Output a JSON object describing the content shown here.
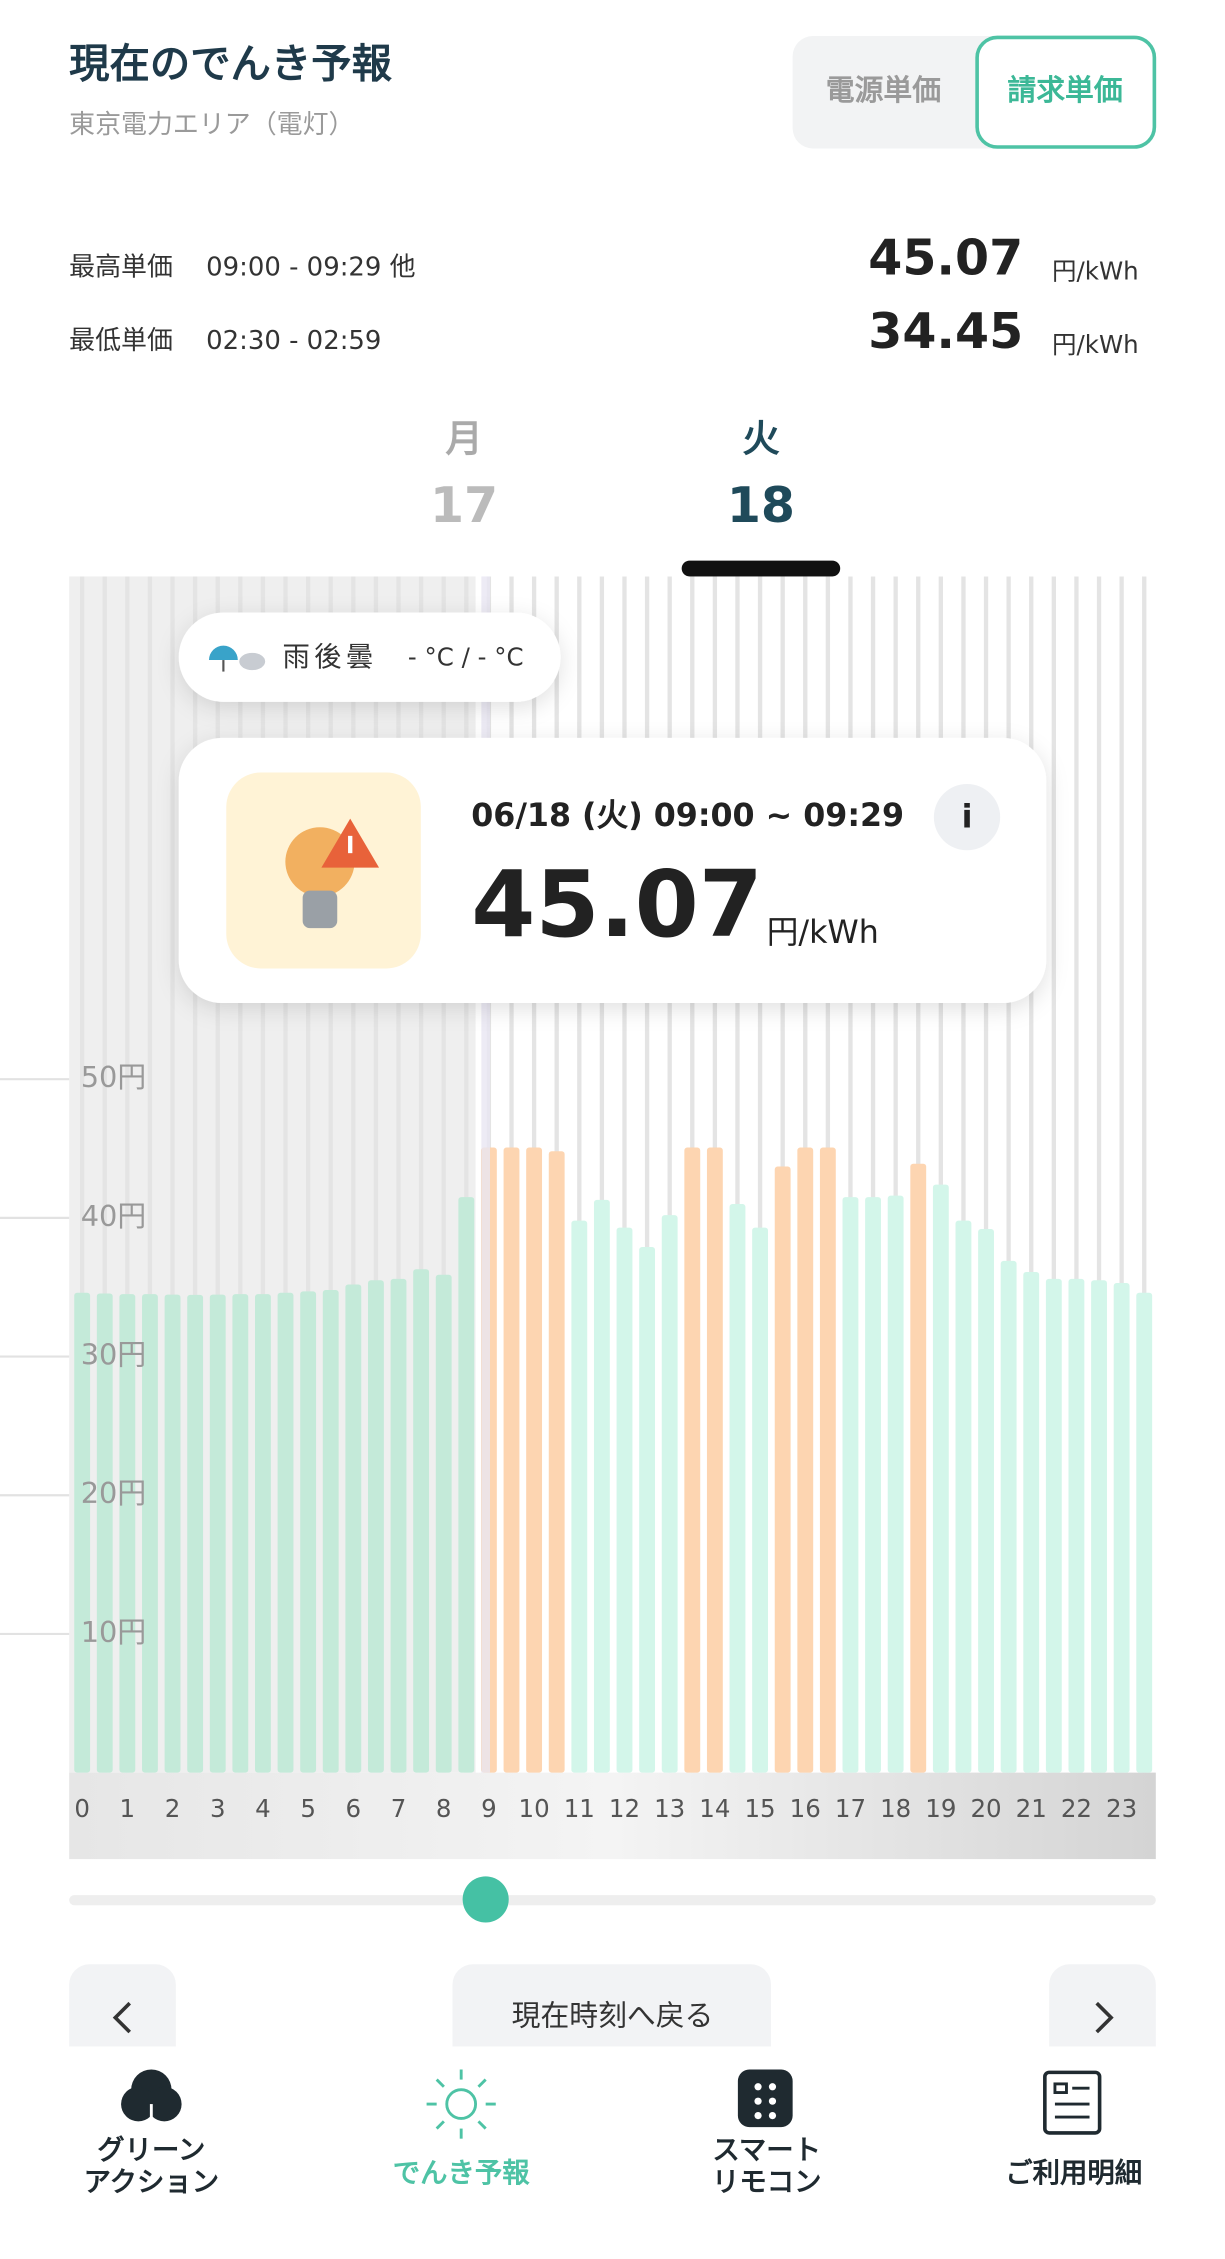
{
  "header": {
    "title": "現在のでんき予報",
    "subtitle": "東京電力エリア（電灯）",
    "toggle": [
      "電源単価",
      "請求単価"
    ]
  },
  "summary": [
    {
      "label": "最高単価",
      "time": "09:00 - 09:29 他",
      "value": "45.07",
      "unit": "円/kWh"
    },
    {
      "label": "最低単価",
      "time": "02:30 - 02:59",
      "value": "34.45",
      "unit": "円/kWh"
    }
  ],
  "days": [
    {
      "weekday": "月",
      "date": "17"
    },
    {
      "weekday": "火",
      "date": "18"
    }
  ],
  "weather": {
    "label": "雨後曇",
    "temp": "- °C / - °C"
  },
  "popup": {
    "time": "06/18 (火) 09:00 ~ 09:29",
    "value": "45.07",
    "unit": "円/kWh",
    "info": "i"
  },
  "chart_data": {
    "type": "bar",
    "categories": [
      "0",
      null,
      "1",
      null,
      "2",
      null,
      "3",
      null,
      "4",
      null,
      "5",
      null,
      "6",
      null,
      "7",
      null,
      "8",
      null,
      "9",
      null,
      "10",
      null,
      "11",
      null,
      "12",
      null,
      "13",
      null,
      "14",
      null,
      "15",
      null,
      "16",
      null,
      "17",
      null,
      "18",
      null,
      "19",
      null,
      "20",
      null,
      "21",
      null,
      "22",
      null,
      "23",
      null
    ],
    "values": [
      34.6,
      34.55,
      34.5,
      34.5,
      34.47,
      34.45,
      34.47,
      34.5,
      34.5,
      34.6,
      34.7,
      34.8,
      35.2,
      35.5,
      35.6,
      36.3,
      35.9,
      41.5,
      45.07,
      45.07,
      45.07,
      44.8,
      39.8,
      41.3,
      39.3,
      37.9,
      40.2,
      45.07,
      45.07,
      41.0,
      39.3,
      43.7,
      45.07,
      45.07,
      41.5,
      41.5,
      41.6,
      43.9,
      42.4,
      39.8,
      39.2,
      36.9,
      36.1,
      35.6,
      35.6,
      35.5,
      35.3,
      34.6
    ],
    "colors": [
      "#c4ead9",
      "#c4ead9",
      "#c4ead9",
      "#c4ead9",
      "#c4ead9",
      "#c4ead9",
      "#c4ead9",
      "#c4ead9",
      "#c4ead9",
      "#c4ead9",
      "#c4ead9",
      "#c4ead9",
      "#c4ead9",
      "#c4ead9",
      "#c4ead9",
      "#c4ead9",
      "#c4ead9",
      "#c4ead9",
      "#fdd5b1",
      "#fdd5b1",
      "#fdd5b1",
      "#fdd5b1",
      "#d3f6ea",
      "#d3f6ea",
      "#d3f6ea",
      "#d3f6ea",
      "#d3f6ea",
      "#fdd5b1",
      "#fdd5b1",
      "#d3f6ea",
      "#d3f6ea",
      "#fdd5b1",
      "#fdd5b1",
      "#fdd5b1",
      "#d3f6ea",
      "#d3f6ea",
      "#d3f6ea",
      "#fdd5b1",
      "#d3f6ea",
      "#d3f6ea",
      "#d3f6ea",
      "#d3f6ea",
      "#d3f6ea",
      "#d3f6ea",
      "#d3f6ea",
      "#d3f6ea",
      "#d3f6ea",
      "#d3f6ea"
    ],
    "ylim": [
      0,
      86.25
    ],
    "yticks": [
      {
        "value": 10,
        "label": "10円"
      },
      {
        "value": 20,
        "label": "20円"
      },
      {
        "value": 30,
        "label": "30円"
      },
      {
        "value": 40,
        "label": "40円"
      },
      {
        "value": 50,
        "label": "50円"
      }
    ]
  },
  "controls": {
    "now": "現在時刻へ戻る"
  },
  "nav": [
    {
      "lines": [
        "グリーン",
        "アクション"
      ]
    },
    {
      "lines": [
        "でんき予報"
      ]
    },
    {
      "lines": [
        "スマート",
        "リモコン"
      ]
    },
    {
      "lines": [
        "ご利用明細"
      ]
    }
  ]
}
